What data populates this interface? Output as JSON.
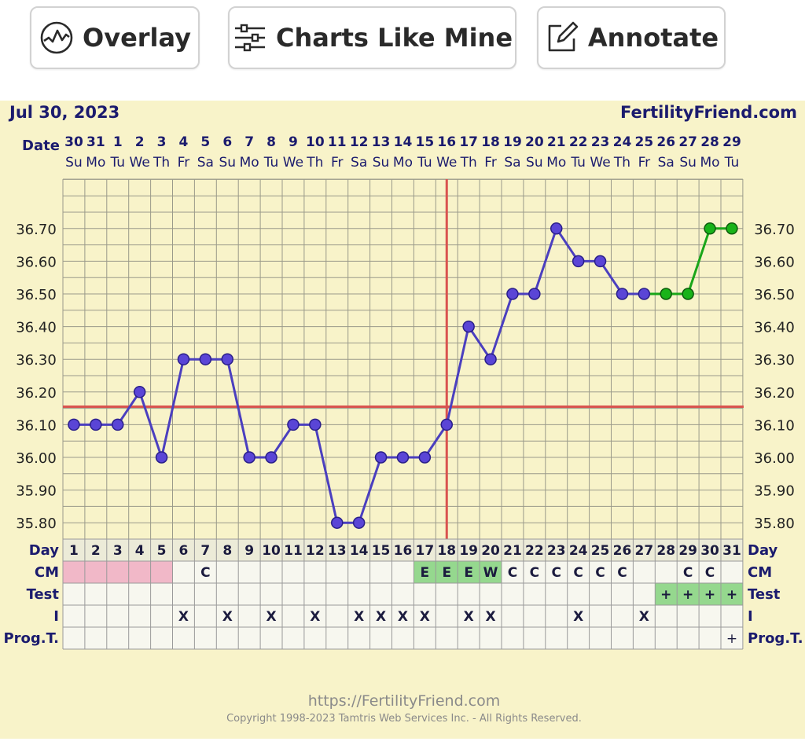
{
  "toolbar": {
    "overlay_label": "Overlay",
    "charts_like_mine_label": "Charts Like Mine",
    "annotate_label": "Annotate",
    "overlay_icon": "line-chart-circle-icon",
    "charts_like_mine_icon": "sliders-icon",
    "annotate_icon": "edit-icon"
  },
  "chart_data": {
    "type": "line",
    "title": "Jul 30, 2023",
    "site": "FertilityFriend.com",
    "date_row_label": "Date",
    "dates": [
      "30",
      "31",
      "1",
      "2",
      "3",
      "4",
      "5",
      "6",
      "7",
      "8",
      "9",
      "10",
      "11",
      "12",
      "13",
      "14",
      "15",
      "16",
      "17",
      "18",
      "19",
      "20",
      "21",
      "22",
      "23",
      "24",
      "25",
      "26",
      "27",
      "28",
      "29"
    ],
    "weekdays": [
      "Su",
      "Mo",
      "Tu",
      "We",
      "Th",
      "Fr",
      "Sa",
      "Su",
      "Mo",
      "Tu",
      "We",
      "Th",
      "Fr",
      "Sa",
      "Su",
      "Mo",
      "Tu",
      "We",
      "Th",
      "Fr",
      "Sa",
      "Su",
      "Mo",
      "Tu",
      "We",
      "Th",
      "Fr",
      "Sa",
      "Su",
      "Mo",
      "Tu"
    ],
    "y_ticks": [
      "36.70",
      "36.60",
      "36.50",
      "36.40",
      "36.30",
      "36.20",
      "36.10",
      "36.00",
      "35.90",
      "35.80"
    ],
    "ylim": [
      35.75,
      36.8
    ],
    "temps": [
      36.1,
      36.1,
      36.1,
      36.2,
      36.0,
      36.3,
      36.3,
      36.3,
      36.0,
      36.0,
      36.1,
      36.1,
      35.8,
      35.8,
      36.0,
      36.0,
      36.0,
      36.1,
      36.4,
      36.3,
      36.5,
      36.5,
      36.7,
      36.6,
      36.6,
      36.5,
      36.5,
      36.5,
      36.5,
      36.7,
      36.7
    ],
    "highlighted_from_day": 27,
    "coverline": 36.155,
    "ovulation_day": 18,
    "colors": {
      "main_line": "#4b3fbf",
      "highlight_line": "#19a619",
      "coverline": "#d9534f",
      "background": "#f8f3c9",
      "grid": "#9a9a8a",
      "menstruation": "#f1b8c8",
      "fertile": "#95d88e"
    },
    "rows": {
      "day": {
        "label": "Day",
        "values": [
          "1",
          "2",
          "3",
          "4",
          "5",
          "6",
          "7",
          "8",
          "9",
          "10",
          "11",
          "12",
          "13",
          "14",
          "15",
          "16",
          "17",
          "18",
          "19",
          "20",
          "21",
          "22",
          "23",
          "24",
          "25",
          "26",
          "27",
          "28",
          "29",
          "30",
          "31"
        ]
      },
      "cm": {
        "label": "CM",
        "values": [
          "",
          "",
          "",
          "",
          "",
          "",
          "C",
          "",
          "",
          "",
          "",
          "",
          "",
          "",
          "",
          "",
          "E",
          "E",
          "E",
          "W",
          "C",
          "C",
          "C",
          "C",
          "C",
          "C",
          "",
          "",
          "C",
          "C",
          ""
        ]
      },
      "test": {
        "label": "Test",
        "values": [
          "",
          "",
          "",
          "",
          "",
          "",
          "",
          "",
          "",
          "",
          "",
          "",
          "",
          "",
          "",
          "",
          "",
          "",
          "",
          "",
          "",
          "",
          "",
          "",
          "",
          "",
          "",
          "+",
          "+",
          "+",
          "+"
        ]
      },
      "i": {
        "label": "I",
        "values": [
          "",
          "",
          "",
          "",
          "",
          "X",
          "",
          "X",
          "",
          "X",
          "",
          "X",
          "",
          "X",
          "X",
          "X",
          "X",
          "",
          "X",
          "X",
          "",
          "",
          "",
          "X",
          "",
          "",
          "X",
          "",
          "",
          "",
          ""
        ]
      },
      "prog": {
        "label": "Prog.T.",
        "values": [
          "",
          "",
          "",
          "",
          "",
          "",
          "",
          "",
          "",
          "",
          "",
          "",
          "",
          "",
          "",
          "",
          "",
          "",
          "",
          "",
          "",
          "",
          "",
          "",
          "",
          "",
          "",
          "",
          "",
          "",
          "+"
        ]
      }
    },
    "menstruation_days": [
      1,
      2,
      3,
      4,
      5
    ],
    "fertile_cm_days": [
      17,
      18,
      19,
      20
    ],
    "positive_test_days": [
      28,
      29,
      30,
      31
    ]
  },
  "footer": {
    "url": "https://FertilityFriend.com",
    "copyright": "Copyright 1998-2023 Tamtris Web Services Inc. - All Rights Reserved."
  }
}
